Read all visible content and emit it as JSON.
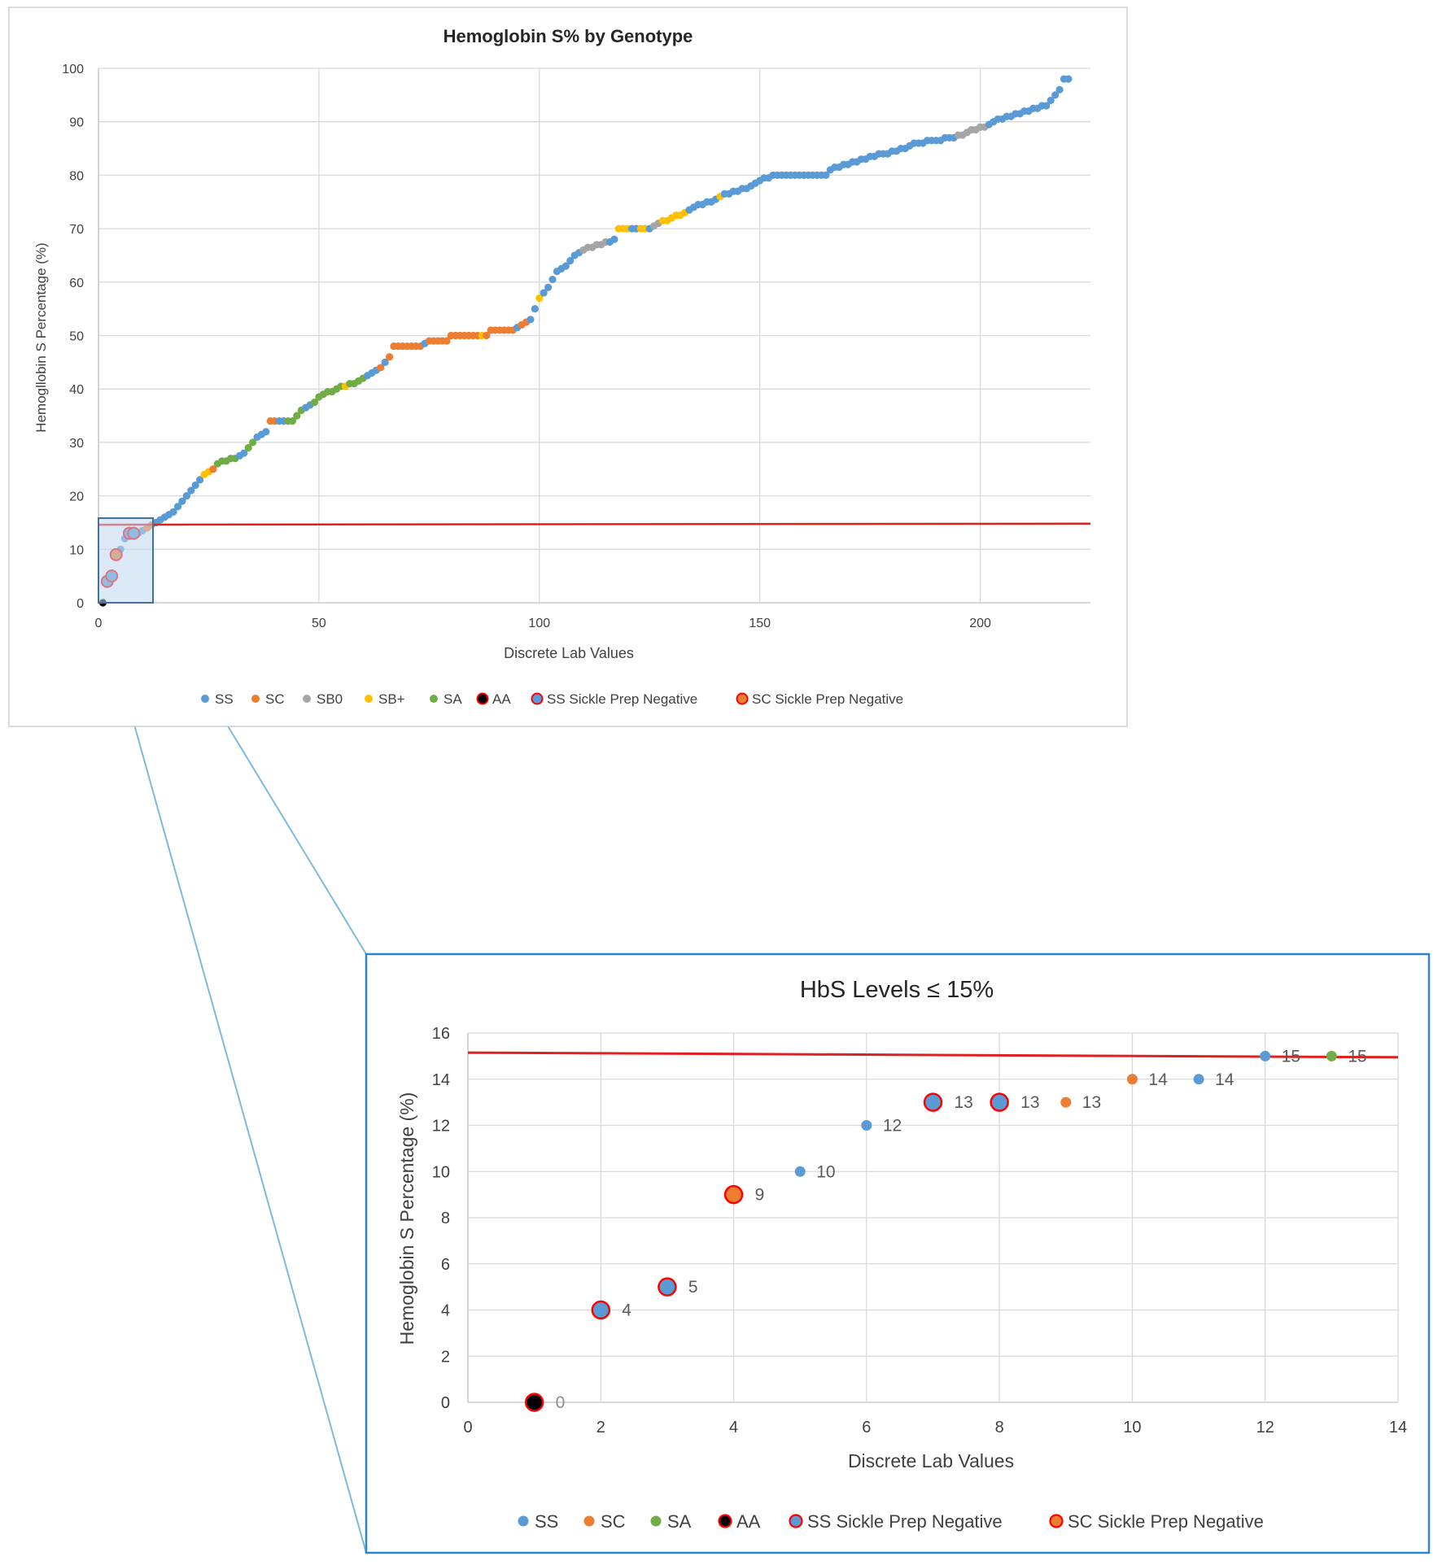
{
  "colors": {
    "SS": "#5b9bd5",
    "SC": "#ed7d31",
    "SB0": "#a5a5a5",
    "SB+": "#ffc000",
    "SA": "#70ad47",
    "AA": "#000000",
    "ring": "#ff0000",
    "threshold": "#e02020",
    "connector": "#7db9e0",
    "inset_border": "#2e86c8",
    "grid": "#d9d9d9",
    "axis": "#bfbfbf"
  },
  "chart_data": [
    {
      "type": "scatter",
      "title": "Hemoglobin S% by Genotype",
      "xlabel": "Discrete Lab Values",
      "ylabel": "Hemogllobin S Percentage (%)",
      "xlim": [
        0,
        225
      ],
      "ylim": [
        0,
        100
      ],
      "x_ticks": [
        "0",
        "50",
        "100",
        "150",
        "200"
      ],
      "y_ticks": [
        "0",
        "10",
        "20",
        "30",
        "40",
        "50",
        "60",
        "70",
        "80",
        "90",
        "100"
      ],
      "grid": true,
      "legend_position": "bottom",
      "legend": [
        "SS",
        "SC",
        "SB0",
        "SB+",
        "SA",
        "AA",
        "SS Sickle Prep Negative",
        "SC Sickle Prep Negative"
      ],
      "threshold_line": [
        [
          0,
          14.6
        ],
        [
          225,
          14.8
        ]
      ],
      "curve_key_points": [
        [
          1,
          0
        ],
        [
          2,
          4
        ],
        [
          3,
          5
        ],
        [
          4,
          9
        ],
        [
          5,
          10
        ],
        [
          6,
          12
        ],
        [
          7,
          13
        ],
        [
          9,
          13
        ],
        [
          13,
          15
        ],
        [
          15,
          16
        ],
        [
          17,
          17
        ],
        [
          19,
          19
        ],
        [
          21,
          21
        ],
        [
          23,
          23
        ],
        [
          24,
          24
        ],
        [
          26,
          25
        ],
        [
          27,
          26
        ],
        [
          31,
          27
        ],
        [
          33,
          28
        ],
        [
          35,
          30
        ],
        [
          36,
          31
        ],
        [
          38,
          32
        ],
        [
          39,
          34
        ],
        [
          44,
          34
        ],
        [
          46,
          36
        ],
        [
          48,
          37
        ],
        [
          51,
          39
        ],
        [
          54,
          40
        ],
        [
          58,
          41
        ],
        [
          60,
          42
        ],
        [
          62,
          43
        ],
        [
          64,
          44
        ],
        [
          66,
          46
        ],
        [
          67,
          48
        ],
        [
          73,
          48
        ],
        [
          75,
          49
        ],
        [
          79,
          49
        ],
        [
          80,
          50
        ],
        [
          88,
          50
        ],
        [
          89,
          51
        ],
        [
          94,
          51
        ],
        [
          96,
          52
        ],
        [
          98,
          53
        ],
        [
          99,
          55
        ],
        [
          100,
          57
        ],
        [
          101,
          58
        ],
        [
          102,
          59
        ],
        [
          104,
          62
        ],
        [
          106,
          63
        ],
        [
          108,
          65
        ],
        [
          110,
          66
        ],
        [
          114,
          67
        ],
        [
          117,
          68
        ],
        [
          118,
          70
        ],
        [
          125,
          70
        ],
        [
          127,
          71
        ],
        [
          130,
          72
        ],
        [
          133,
          73
        ],
        [
          135,
          74
        ],
        [
          139,
          75
        ],
        [
          141,
          76
        ],
        [
          145,
          77
        ],
        [
          148,
          78
        ],
        [
          150,
          79
        ],
        [
          153,
          80
        ],
        [
          165,
          80
        ],
        [
          166,
          81
        ],
        [
          169,
          82
        ],
        [
          174,
          83
        ],
        [
          178,
          84
        ],
        [
          183,
          85
        ],
        [
          185,
          86
        ],
        [
          194,
          87
        ],
        [
          197,
          88
        ],
        [
          201,
          89
        ],
        [
          203,
          90
        ],
        [
          207,
          91
        ],
        [
          210,
          92
        ],
        [
          215,
          93
        ],
        [
          216,
          94
        ],
        [
          218,
          96
        ],
        [
          219,
          98
        ],
        [
          220,
          98
        ]
      ],
      "genotype_ranges": [
        [
          "SC",
          8,
          8
        ],
        [
          "SC",
          11,
          12
        ],
        [
          "SB+",
          24,
          25
        ],
        [
          "SC",
          26,
          26
        ],
        [
          "SA",
          27,
          31
        ],
        [
          "SA",
          34,
          35
        ],
        [
          "SC",
          39,
          40
        ],
        [
          "SA",
          43,
          46
        ],
        [
          "SA",
          49,
          55
        ],
        [
          "SB+",
          56,
          56
        ],
        [
          "SA",
          57,
          60
        ],
        [
          "SC",
          64,
          64
        ],
        [
          "SC",
          66,
          73
        ],
        [
          "SC",
          75,
          80
        ],
        [
          "SC",
          81,
          86
        ],
        [
          "SB+",
          87,
          87
        ],
        [
          "SC",
          88,
          94
        ],
        [
          "SC",
          96,
          97
        ],
        [
          "SB+",
          100,
          100
        ],
        [
          "SB0",
          110,
          114
        ],
        [
          "SB0",
          115,
          115
        ],
        [
          "SB+",
          118,
          120
        ],
        [
          "SB+",
          123,
          124
        ],
        [
          "SB0",
          126,
          127
        ],
        [
          "SB+",
          128,
          133
        ],
        [
          "SB+",
          141,
          141
        ],
        [
          "SB0",
          195,
          201
        ]
      ],
      "sickle_prep_negative": [
        {
          "x": 2,
          "y": 4,
          "genotype": "SS"
        },
        {
          "x": 3,
          "y": 5,
          "genotype": "SS"
        },
        {
          "x": 4,
          "y": 9,
          "genotype": "SC"
        },
        {
          "x": 7,
          "y": 13,
          "genotype": "SS"
        },
        {
          "x": 8,
          "y": 13,
          "genotype": "SS"
        }
      ]
    },
    {
      "type": "scatter",
      "title": "HbS Levels ≤ 15%",
      "xlabel": "Discrete Lab Values",
      "ylabel": "Hemoglobin S Percentage (%)",
      "xlim": [
        0,
        14
      ],
      "ylim": [
        0,
        16
      ],
      "x_ticks": [
        "0",
        "2",
        "4",
        "6",
        "8",
        "10",
        "12",
        "14"
      ],
      "y_ticks": [
        "0",
        "2",
        "4",
        "6",
        "8",
        "10",
        "12",
        "14",
        "16"
      ],
      "grid": true,
      "legend_position": "bottom",
      "legend": [
        "SS",
        "SC",
        "SA",
        "AA",
        "SS Sickle Prep Negative",
        "SC Sickle Prep Negative"
      ],
      "threshold_line": [
        [
          0,
          15.15
        ],
        [
          14,
          14.95
        ]
      ],
      "points": [
        {
          "x": 1,
          "y": 0,
          "label": "0",
          "genotype": "AA",
          "sickle_prep_negative": true
        },
        {
          "x": 2,
          "y": 4,
          "label": "4",
          "genotype": "SS",
          "sickle_prep_negative": true
        },
        {
          "x": 3,
          "y": 5,
          "label": "5",
          "genotype": "SS",
          "sickle_prep_negative": true
        },
        {
          "x": 4,
          "y": 9,
          "label": "9",
          "genotype": "SC",
          "sickle_prep_negative": true
        },
        {
          "x": 5,
          "y": 10,
          "label": "10",
          "genotype": "SS",
          "sickle_prep_negative": false
        },
        {
          "x": 6,
          "y": 12,
          "label": "12",
          "genotype": "SS",
          "sickle_prep_negative": false
        },
        {
          "x": 7,
          "y": 13,
          "label": "13",
          "genotype": "SS",
          "sickle_prep_negative": true
        },
        {
          "x": 8,
          "y": 13,
          "label": "13",
          "genotype": "SS",
          "sickle_prep_negative": true
        },
        {
          "x": 9,
          "y": 13,
          "label": "13",
          "genotype": "SC",
          "sickle_prep_negative": false
        },
        {
          "x": 10,
          "y": 14,
          "label": "14",
          "genotype": "SC",
          "sickle_prep_negative": false
        },
        {
          "x": 11,
          "y": 14,
          "label": "14",
          "genotype": "SS",
          "sickle_prep_negative": false
        },
        {
          "x": 12,
          "y": 15,
          "label": "15",
          "genotype": "SS",
          "sickle_prep_negative": false
        },
        {
          "x": 13,
          "y": 15,
          "label": "15",
          "genotype": "SA",
          "sickle_prep_negative": false
        }
      ]
    }
  ]
}
